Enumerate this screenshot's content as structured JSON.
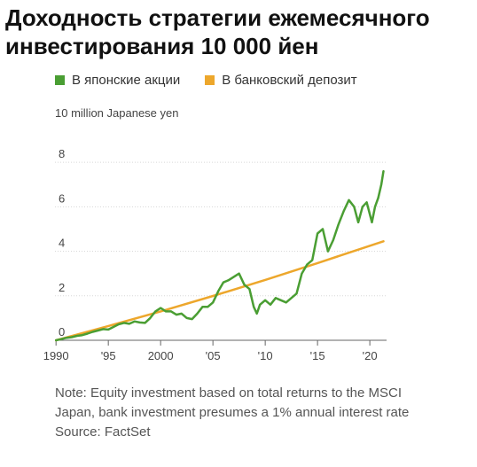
{
  "title": "Доходность стратегии ежемесячного инвестирования 10 000 йен",
  "unit_label": "10 million Japanese yen",
  "note": "Note: Equity investment based on total returns to the MSCI Japan, bank investment presumes a 1% annual interest rate",
  "source": "Source: FactSet",
  "colors": {
    "equity": "#4a9e33",
    "deposit": "#eda72c",
    "axis": "#666666",
    "grid": "#d8d8d8"
  },
  "chart_data": {
    "type": "line",
    "title": "Доходность стратегии ежемесячного инвестирования 10 000 йен",
    "ylabel": "10 million Japanese yen",
    "xlim": [
      1989.9,
      2021.6
    ],
    "ylim": [
      0,
      9
    ],
    "grid": true,
    "legend": "top-left",
    "x_ticks": [
      {
        "value": 1990,
        "label": "1990"
      },
      {
        "value": 1995,
        "label": "'95"
      },
      {
        "value": 2000,
        "label": "2000"
      },
      {
        "value": 2005,
        "label": "'05"
      },
      {
        "value": 2010,
        "label": "'10"
      },
      {
        "value": 2015,
        "label": "'15"
      },
      {
        "value": 2020,
        "label": "'20"
      }
    ],
    "y_ticks": [
      {
        "value": 0,
        "label": "0"
      },
      {
        "value": 2,
        "label": "2"
      },
      {
        "value": 4,
        "label": "4"
      },
      {
        "value": 6,
        "label": "6"
      },
      {
        "value": 8,
        "label": "8"
      }
    ],
    "series": [
      {
        "name": "В японские акции",
        "color": "#4a9e33",
        "points": [
          [
            1990.0,
            0.0
          ],
          [
            1990.5,
            0.05
          ],
          [
            1991.0,
            0.11
          ],
          [
            1991.5,
            0.14
          ],
          [
            1992.0,
            0.2
          ],
          [
            1992.5,
            0.23
          ],
          [
            1993.0,
            0.3
          ],
          [
            1993.5,
            0.38
          ],
          [
            1994.0,
            0.44
          ],
          [
            1994.5,
            0.5
          ],
          [
            1995.0,
            0.48
          ],
          [
            1995.5,
            0.6
          ],
          [
            1996.0,
            0.72
          ],
          [
            1996.5,
            0.78
          ],
          [
            1997.0,
            0.74
          ],
          [
            1997.5,
            0.85
          ],
          [
            1998.0,
            0.8
          ],
          [
            1998.5,
            0.78
          ],
          [
            1999.0,
            1.0
          ],
          [
            1999.5,
            1.3
          ],
          [
            2000.0,
            1.45
          ],
          [
            2000.5,
            1.3
          ],
          [
            2001.0,
            1.3
          ],
          [
            2001.5,
            1.15
          ],
          [
            2002.0,
            1.2
          ],
          [
            2002.5,
            1.0
          ],
          [
            2003.0,
            0.95
          ],
          [
            2003.5,
            1.2
          ],
          [
            2004.0,
            1.5
          ],
          [
            2004.5,
            1.5
          ],
          [
            2005.0,
            1.7
          ],
          [
            2005.5,
            2.2
          ],
          [
            2006.0,
            2.6
          ],
          [
            2006.5,
            2.7
          ],
          [
            2007.0,
            2.85
          ],
          [
            2007.5,
            3.0
          ],
          [
            2008.0,
            2.5
          ],
          [
            2008.5,
            2.3
          ],
          [
            2008.9,
            1.5
          ],
          [
            2009.2,
            1.2
          ],
          [
            2009.5,
            1.6
          ],
          [
            2010.0,
            1.8
          ],
          [
            2010.5,
            1.6
          ],
          [
            2011.0,
            1.9
          ],
          [
            2011.5,
            1.8
          ],
          [
            2012.0,
            1.7
          ],
          [
            2012.5,
            1.9
          ],
          [
            2013.0,
            2.1
          ],
          [
            2013.5,
            3.0
          ],
          [
            2014.0,
            3.4
          ],
          [
            2014.5,
            3.6
          ],
          [
            2015.0,
            4.8
          ],
          [
            2015.5,
            5.0
          ],
          [
            2016.0,
            4.0
          ],
          [
            2016.5,
            4.5
          ],
          [
            2017.0,
            5.2
          ],
          [
            2017.5,
            5.8
          ],
          [
            2018.0,
            6.3
          ],
          [
            2018.5,
            6.0
          ],
          [
            2018.9,
            5.3
          ],
          [
            2019.3,
            6.0
          ],
          [
            2019.7,
            6.2
          ],
          [
            2020.2,
            5.3
          ],
          [
            2020.5,
            6.0
          ],
          [
            2020.8,
            6.4
          ],
          [
            2021.1,
            7.0
          ],
          [
            2021.3,
            7.6
          ]
        ]
      },
      {
        "name": "В банковский депозит",
        "color": "#eda72c",
        "points": [
          [
            1990.0,
            0.0
          ],
          [
            1995.0,
            0.64
          ],
          [
            2000.0,
            1.3
          ],
          [
            2005.0,
            1.99
          ],
          [
            2010.0,
            2.71
          ],
          [
            2015.0,
            3.47
          ],
          [
            2021.3,
            4.45
          ]
        ]
      }
    ]
  }
}
